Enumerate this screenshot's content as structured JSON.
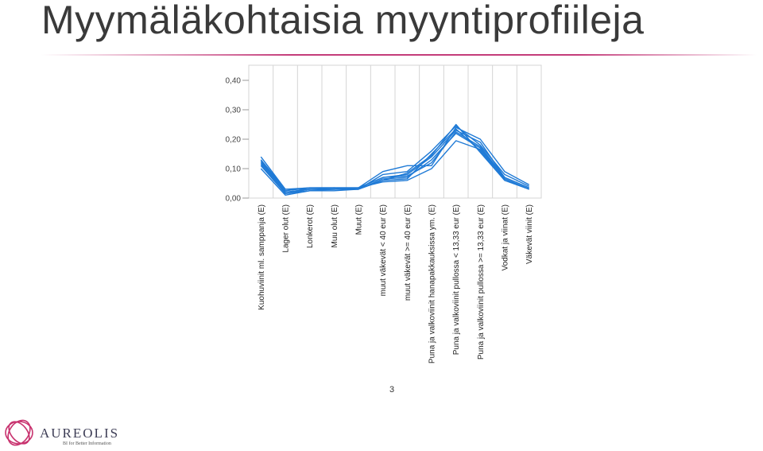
{
  "slide": {
    "title": "Myymäläkohtaisia myyntiprofiileja",
    "page_number": "3"
  },
  "logo": {
    "name": "AUREOLIS",
    "tagline": "BI for Better Information"
  },
  "chart_data": {
    "type": "line",
    "title": "",
    "xlabel": "",
    "ylabel": "",
    "ylim": [
      0,
      0.4
    ],
    "yticks": [
      "0,00",
      "0,10",
      "0,20",
      "0,30",
      "0,40"
    ],
    "grid": true,
    "legend": "none",
    "line_color": "#1f7ad6",
    "categories": [
      "Kuohuviinit ml. samppanja (E)",
      "Lager olut (E)",
      "Lonkerot (E)",
      "Muu olut (E)",
      "Muut (E)",
      "muut väkevät < 40 eur (E)",
      "muut väkevät >= 40 eur (E)",
      "Puna ja valkoviinit hanapakkauksissa ym. (E)",
      "Puna ja valkoviinit pullossa < 13,33 eur (E)",
      "Puna ja valkoviinit pullossa >= 13,33 eur (E)",
      "Vodkat ja viinat (E)",
      "Väkevät viinit (E)"
    ],
    "series": [
      {
        "values": [
          0.14,
          0.03,
          0.035,
          0.035,
          0.035,
          0.09,
          0.11,
          0.11,
          0.24,
          0.2,
          0.09,
          0.045
        ]
      },
      {
        "values": [
          0.13,
          0.03,
          0.03,
          0.035,
          0.03,
          0.08,
          0.09,
          0.16,
          0.245,
          0.18,
          0.08,
          0.04
        ]
      },
      {
        "values": [
          0.12,
          0.02,
          0.03,
          0.03,
          0.035,
          0.07,
          0.08,
          0.14,
          0.23,
          0.19,
          0.07,
          0.035
        ]
      },
      {
        "values": [
          0.11,
          0.015,
          0.025,
          0.03,
          0.03,
          0.065,
          0.07,
          0.13,
          0.22,
          0.17,
          0.065,
          0.03
        ]
      },
      {
        "values": [
          0.1,
          0.01,
          0.025,
          0.025,
          0.03,
          0.06,
          0.065,
          0.15,
          0.235,
          0.16,
          0.06,
          0.03
        ]
      },
      {
        "values": [
          0.125,
          0.025,
          0.035,
          0.035,
          0.035,
          0.07,
          0.075,
          0.12,
          0.225,
          0.175,
          0.07,
          0.035
        ]
      },
      {
        "values": [
          0.13,
          0.02,
          0.03,
          0.03,
          0.035,
          0.055,
          0.06,
          0.1,
          0.195,
          0.165,
          0.065,
          0.03
        ]
      },
      {
        "values": [
          0.115,
          0.015,
          0.03,
          0.03,
          0.03,
          0.06,
          0.085,
          0.145,
          0.25,
          0.155,
          0.06,
          0.03
        ]
      }
    ]
  }
}
